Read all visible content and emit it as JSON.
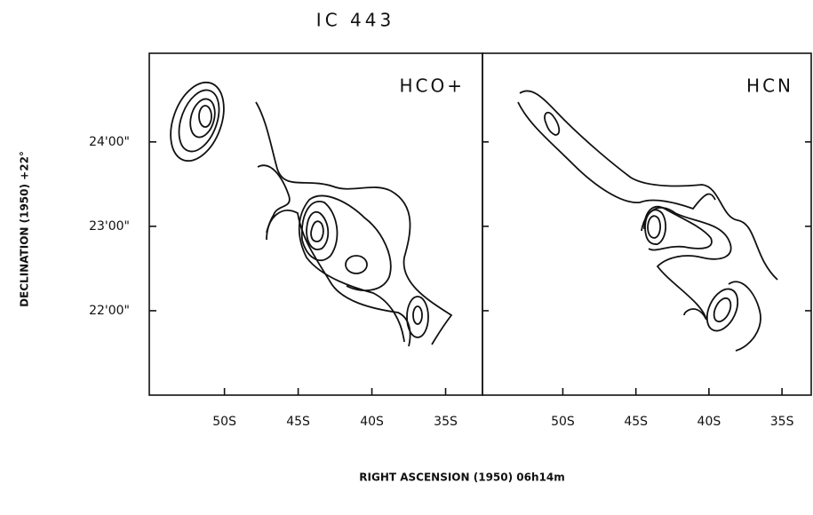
{
  "title": "IC 443",
  "xlabel": "RIGHT ASCENSION (1950)  06h14m",
  "ylabel": "DECLINATION (1950)  +22°",
  "chart_data": [
    {
      "type": "contour",
      "label": "HCO+",
      "xlim": [
        55.1,
        32.5
      ],
      "ylim": [
        21.0,
        25.05
      ],
      "xticks": [
        {
          "value": 50,
          "label": "50S"
        },
        {
          "value": 45,
          "label": "45S"
        },
        {
          "value": 40,
          "label": "40S"
        },
        {
          "value": 35,
          "label": "35S"
        }
      ],
      "yticks": [
        {
          "value": 22,
          "label": "22'00\""
        },
        {
          "value": 23,
          "label": "23'00\""
        },
        {
          "value": 24,
          "label": "24'00\""
        }
      ]
    },
    {
      "type": "contour",
      "label": "HCN",
      "xlim": [
        55.5,
        33.0
      ],
      "ylim": [
        21.0,
        25.05
      ],
      "xticks": [
        {
          "value": 50,
          "label": "50S"
        },
        {
          "value": 45,
          "label": "45S"
        },
        {
          "value": 40,
          "label": "40S"
        },
        {
          "value": 35,
          "label": "35S"
        }
      ],
      "yticks": [
        22,
        23,
        24
      ]
    }
  ]
}
